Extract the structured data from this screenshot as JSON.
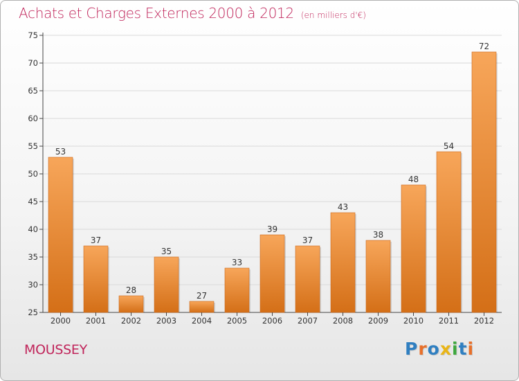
{
  "title": "Achats et Charges Externes 2000 à 2012",
  "unit": "(en milliers d'€)",
  "town": "MOUSSEY",
  "brand": {
    "text": "Proxiti",
    "letter_colors": [
      "#2f7fc1",
      "#e8702a",
      "#2f7fc1",
      "#e9b516",
      "#3da83d",
      "#2f7fc1",
      "#e8702a"
    ]
  },
  "colors": {
    "bar_light": "#f7a65a",
    "bar_dark": "#d46f17",
    "axis": "#444444",
    "grid": "#d9d9d9",
    "title": "#c0245a"
  },
  "chart_data": {
    "type": "bar",
    "title": "Achats et Charges Externes 2000 à 2012",
    "subtitle": "(en milliers d'€)",
    "xlabel": "",
    "ylabel": "",
    "categories": [
      "2000",
      "2001",
      "2002",
      "2003",
      "2004",
      "2005",
      "2006",
      "2007",
      "2008",
      "2009",
      "2010",
      "2011",
      "2012"
    ],
    "values": [
      53,
      37,
      28,
      35,
      27,
      33,
      39,
      37,
      43,
      38,
      48,
      54,
      72
    ],
    "data_labels": [
      "53",
      "37",
      "28",
      "35",
      "27",
      "33",
      "39",
      "37",
      "43",
      "38",
      "48",
      "54",
      "72"
    ],
    "ylim": [
      25,
      75
    ],
    "yticks": [
      25,
      30,
      35,
      40,
      45,
      50,
      55,
      60,
      65,
      70,
      75
    ],
    "grid": true,
    "legend": "none"
  }
}
